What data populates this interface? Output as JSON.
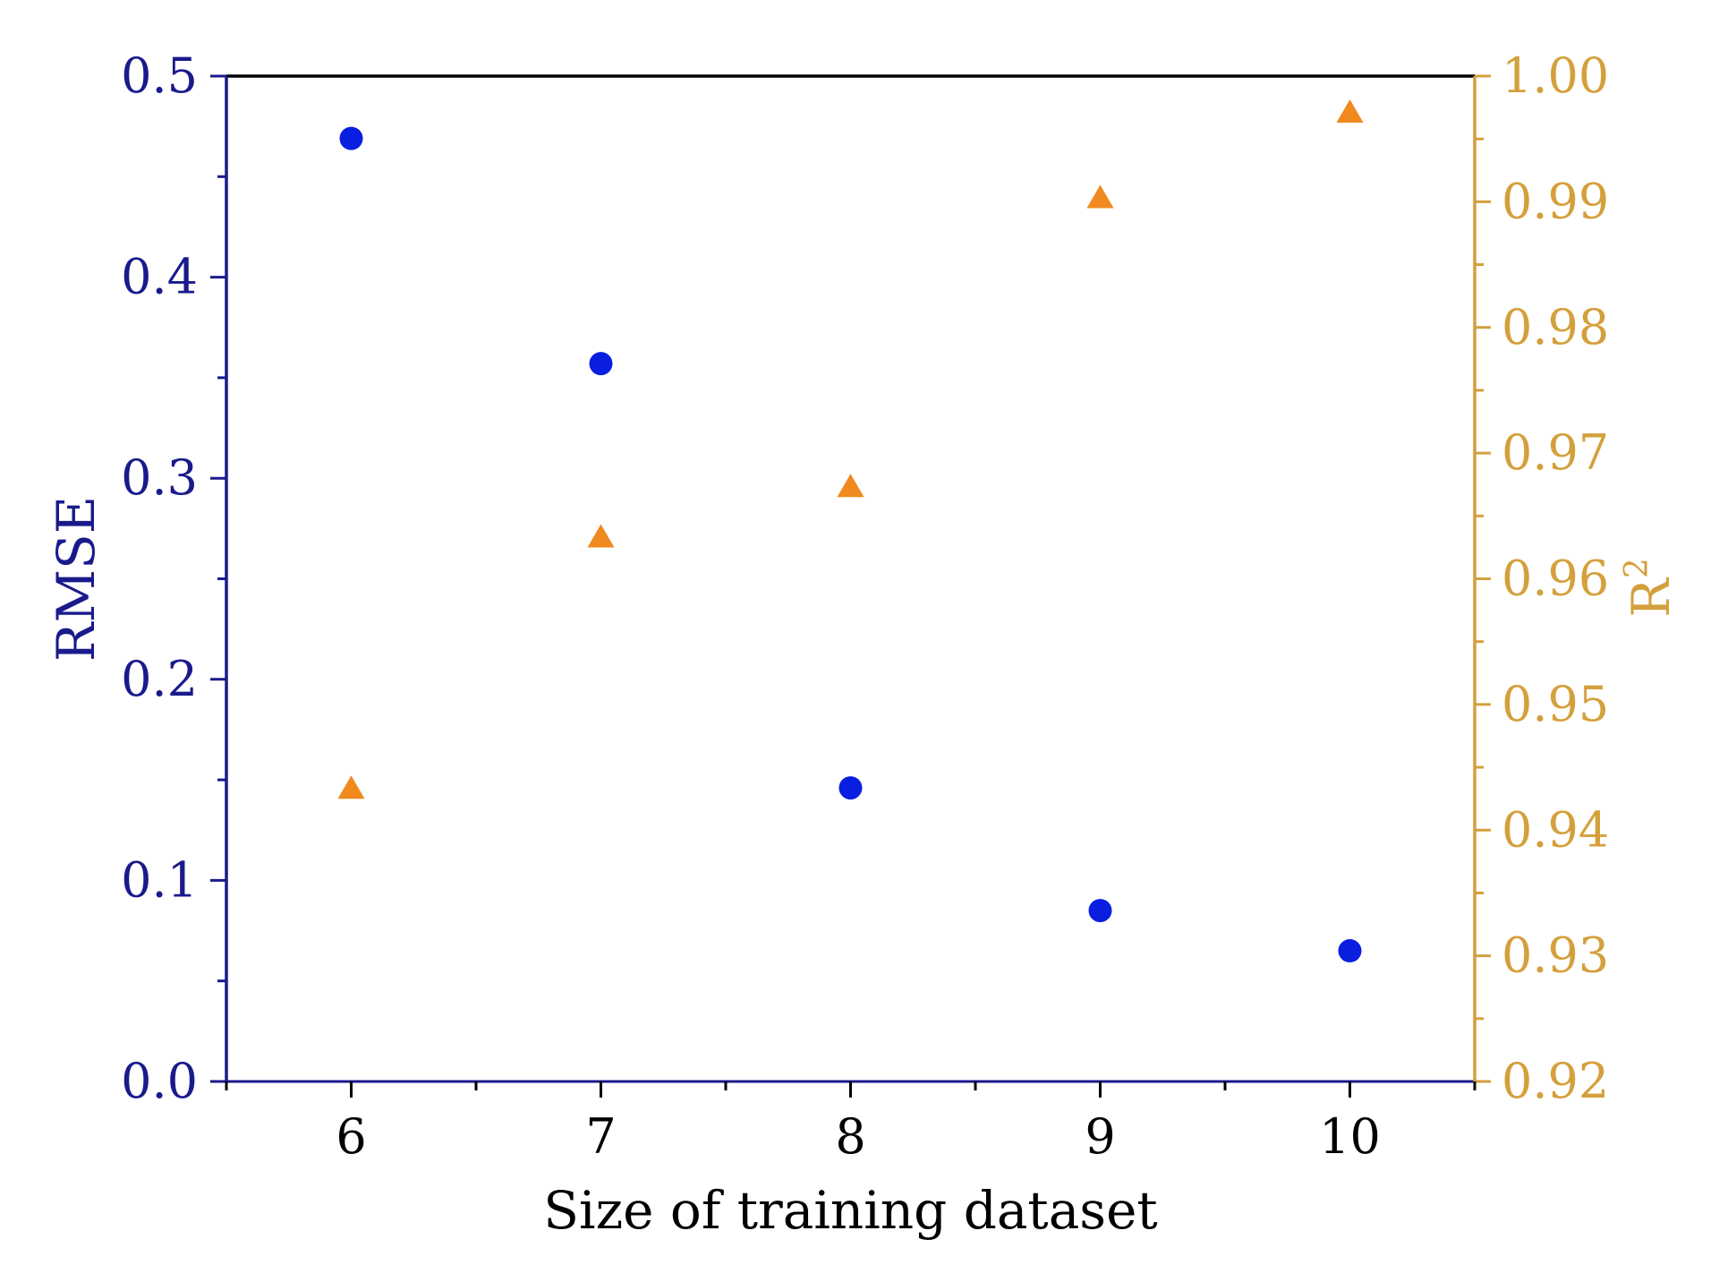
{
  "chart_data": {
    "type": "scatter",
    "title": "",
    "xlabel": "Size of training dataset",
    "x": [
      6,
      7,
      8,
      9,
      10
    ],
    "xlim": [
      5.5,
      10.5
    ],
    "xticks": [
      "6",
      "7",
      "8",
      "9",
      "10"
    ],
    "grid": false,
    "legend": "none",
    "y_left": {
      "label": "RMSE",
      "color": "#1a1a8c",
      "ylim": [
        0.0,
        0.5
      ],
      "ticks": [
        "0.0",
        "0.1",
        "0.2",
        "0.3",
        "0.4",
        "0.5"
      ]
    },
    "y_right": {
      "label": "R",
      "label_superscript": "2",
      "color": "#d4a03c",
      "ylim": [
        0.92,
        1.0
      ],
      "ticks": [
        "0.92",
        "0.93",
        "0.94",
        "0.95",
        "0.96",
        "0.97",
        "0.98",
        "0.99",
        "1.00"
      ]
    },
    "series": [
      {
        "axis": "left",
        "marker": "circle",
        "color": "#0a1ee0",
        "values": [
          0.469,
          0.357,
          0.146,
          0.085,
          0.065
        ]
      },
      {
        "axis": "right",
        "marker": "triangle",
        "color": "#f08a1e",
        "values": [
          0.9432,
          0.9632,
          0.9672,
          0.9902,
          0.997
        ]
      }
    ]
  }
}
